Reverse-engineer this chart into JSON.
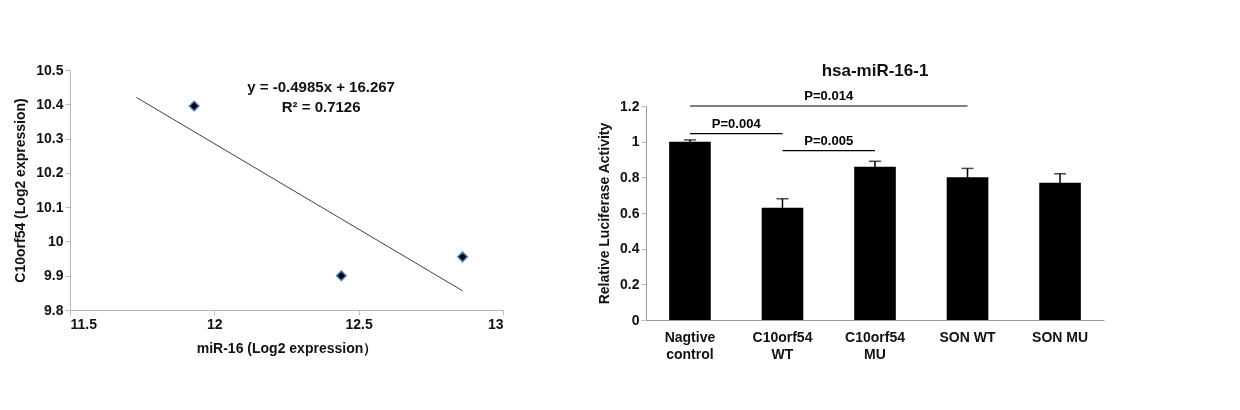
{
  "chart_data": [
    {
      "type": "scatter",
      "xlabel": "miR-16 (Log2 expression）",
      "ylabel": "C10orf54 (Log2 expression)",
      "xlim": [
        11.5,
        13
      ],
      "xticks": [
        11.5,
        12,
        12.5,
        13
      ],
      "ylim": [
        9.8,
        10.5
      ],
      "yticks": [
        9.8,
        9.9,
        10,
        10.1,
        10.2,
        10.3,
        10.4,
        10.5
      ],
      "grid": false,
      "series": [
        {
          "type": "scatter",
          "marker": "diamond",
          "color": "#000000",
          "x": [
            11.93,
            12.44,
            12.86
          ],
          "values": [
            10.395,
            9.9,
            9.955
          ]
        },
        {
          "type": "line",
          "color": "#404040",
          "x": [
            11.73,
            12.86
          ],
          "values": [
            10.42,
            9.856
          ]
        }
      ],
      "annotations": [
        "y = -0.4985x + 16.267",
        "R² = 0.7126"
      ]
    },
    {
      "type": "bar",
      "title": "hsa-miR-16-1",
      "ylabel": "Relative Luciferase Activity",
      "categories": [
        "Nagtive control",
        "C10orf54 WT",
        "C10orf54 MU",
        "SON WT",
        "SON MU"
      ],
      "values": [
        1.0,
        0.63,
        0.86,
        0.8,
        0.77
      ],
      "errors": [
        0.01,
        0.05,
        0.03,
        0.05,
        0.05
      ],
      "color": "#000000",
      "ylim": [
        0,
        1.2
      ],
      "yticks": [
        0,
        0.2,
        0.4,
        0.6,
        0.8,
        1,
        1.2
      ],
      "grid": false,
      "annotations": [
        "P=0.014",
        "P=0.004",
        "P=0.005"
      ]
    }
  ]
}
